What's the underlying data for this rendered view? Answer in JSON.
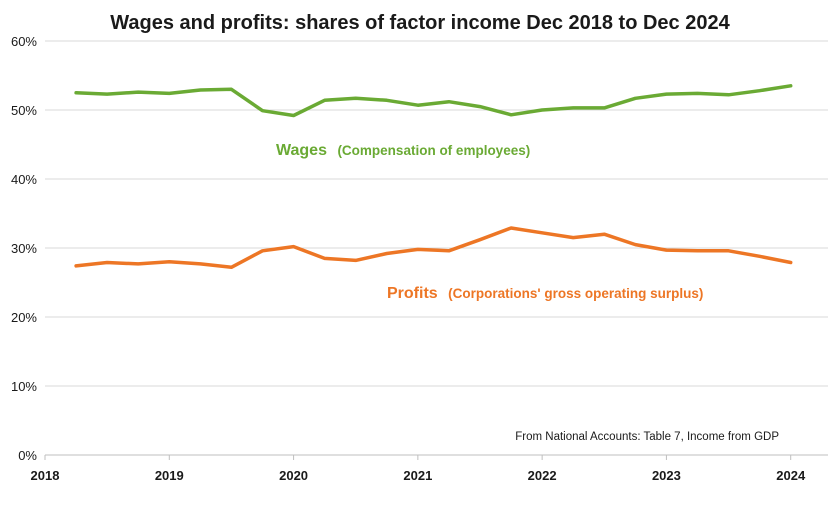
{
  "chart_data": {
    "type": "line",
    "title": "Wages and profits: shares of factor income Dec 2018  to Dec 2024",
    "xlabel": "",
    "ylabel": "",
    "xlim": [
      2018,
      2024.3
    ],
    "ylim": [
      0,
      60
    ],
    "x_ticks": [
      "2018",
      "2019",
      "2020",
      "2021",
      "2022",
      "2023",
      "2024"
    ],
    "y_ticks": [
      "0%",
      "10%",
      "20%",
      "30%",
      "40%",
      "50%",
      "60%"
    ],
    "grid": true,
    "x": [
      2018.25,
      2018.5,
      2018.75,
      2019.0,
      2019.25,
      2019.5,
      2019.75,
      2020.0,
      2020.25,
      2020.5,
      2020.75,
      2021.0,
      2021.25,
      2021.5,
      2021.75,
      2022.0,
      2022.25,
      2022.5,
      2022.75,
      2023.0,
      2023.25,
      2023.5,
      2023.75,
      2024.0
    ],
    "series": [
      {
        "name": "Wages",
        "label_main": "Wages",
        "label_sub": "(Compensation of employees)",
        "color": "#6aaa34",
        "values": [
          52.5,
          52.3,
          52.6,
          52.4,
          52.9,
          53.0,
          49.9,
          49.2,
          51.4,
          51.7,
          51.4,
          50.7,
          51.2,
          50.5,
          49.3,
          50.0,
          50.3,
          50.3,
          51.7,
          52.3,
          52.4,
          52.2,
          52.8,
          53.5
        ]
      },
      {
        "name": "Profits",
        "label_main": "Profits",
        "label_sub": "(Corporations' gross operating surplus)",
        "color": "#ed7625",
        "values": [
          27.4,
          27.9,
          27.7,
          28.0,
          27.7,
          27.2,
          29.6,
          30.2,
          28.5,
          28.2,
          29.2,
          29.8,
          29.6,
          31.2,
          32.9,
          32.2,
          31.5,
          32.0,
          30.5,
          29.7,
          29.6,
          29.6,
          28.8,
          27.9
        ]
      }
    ],
    "annotation": "From National Accounts: Table 7, Income from GDP"
  }
}
